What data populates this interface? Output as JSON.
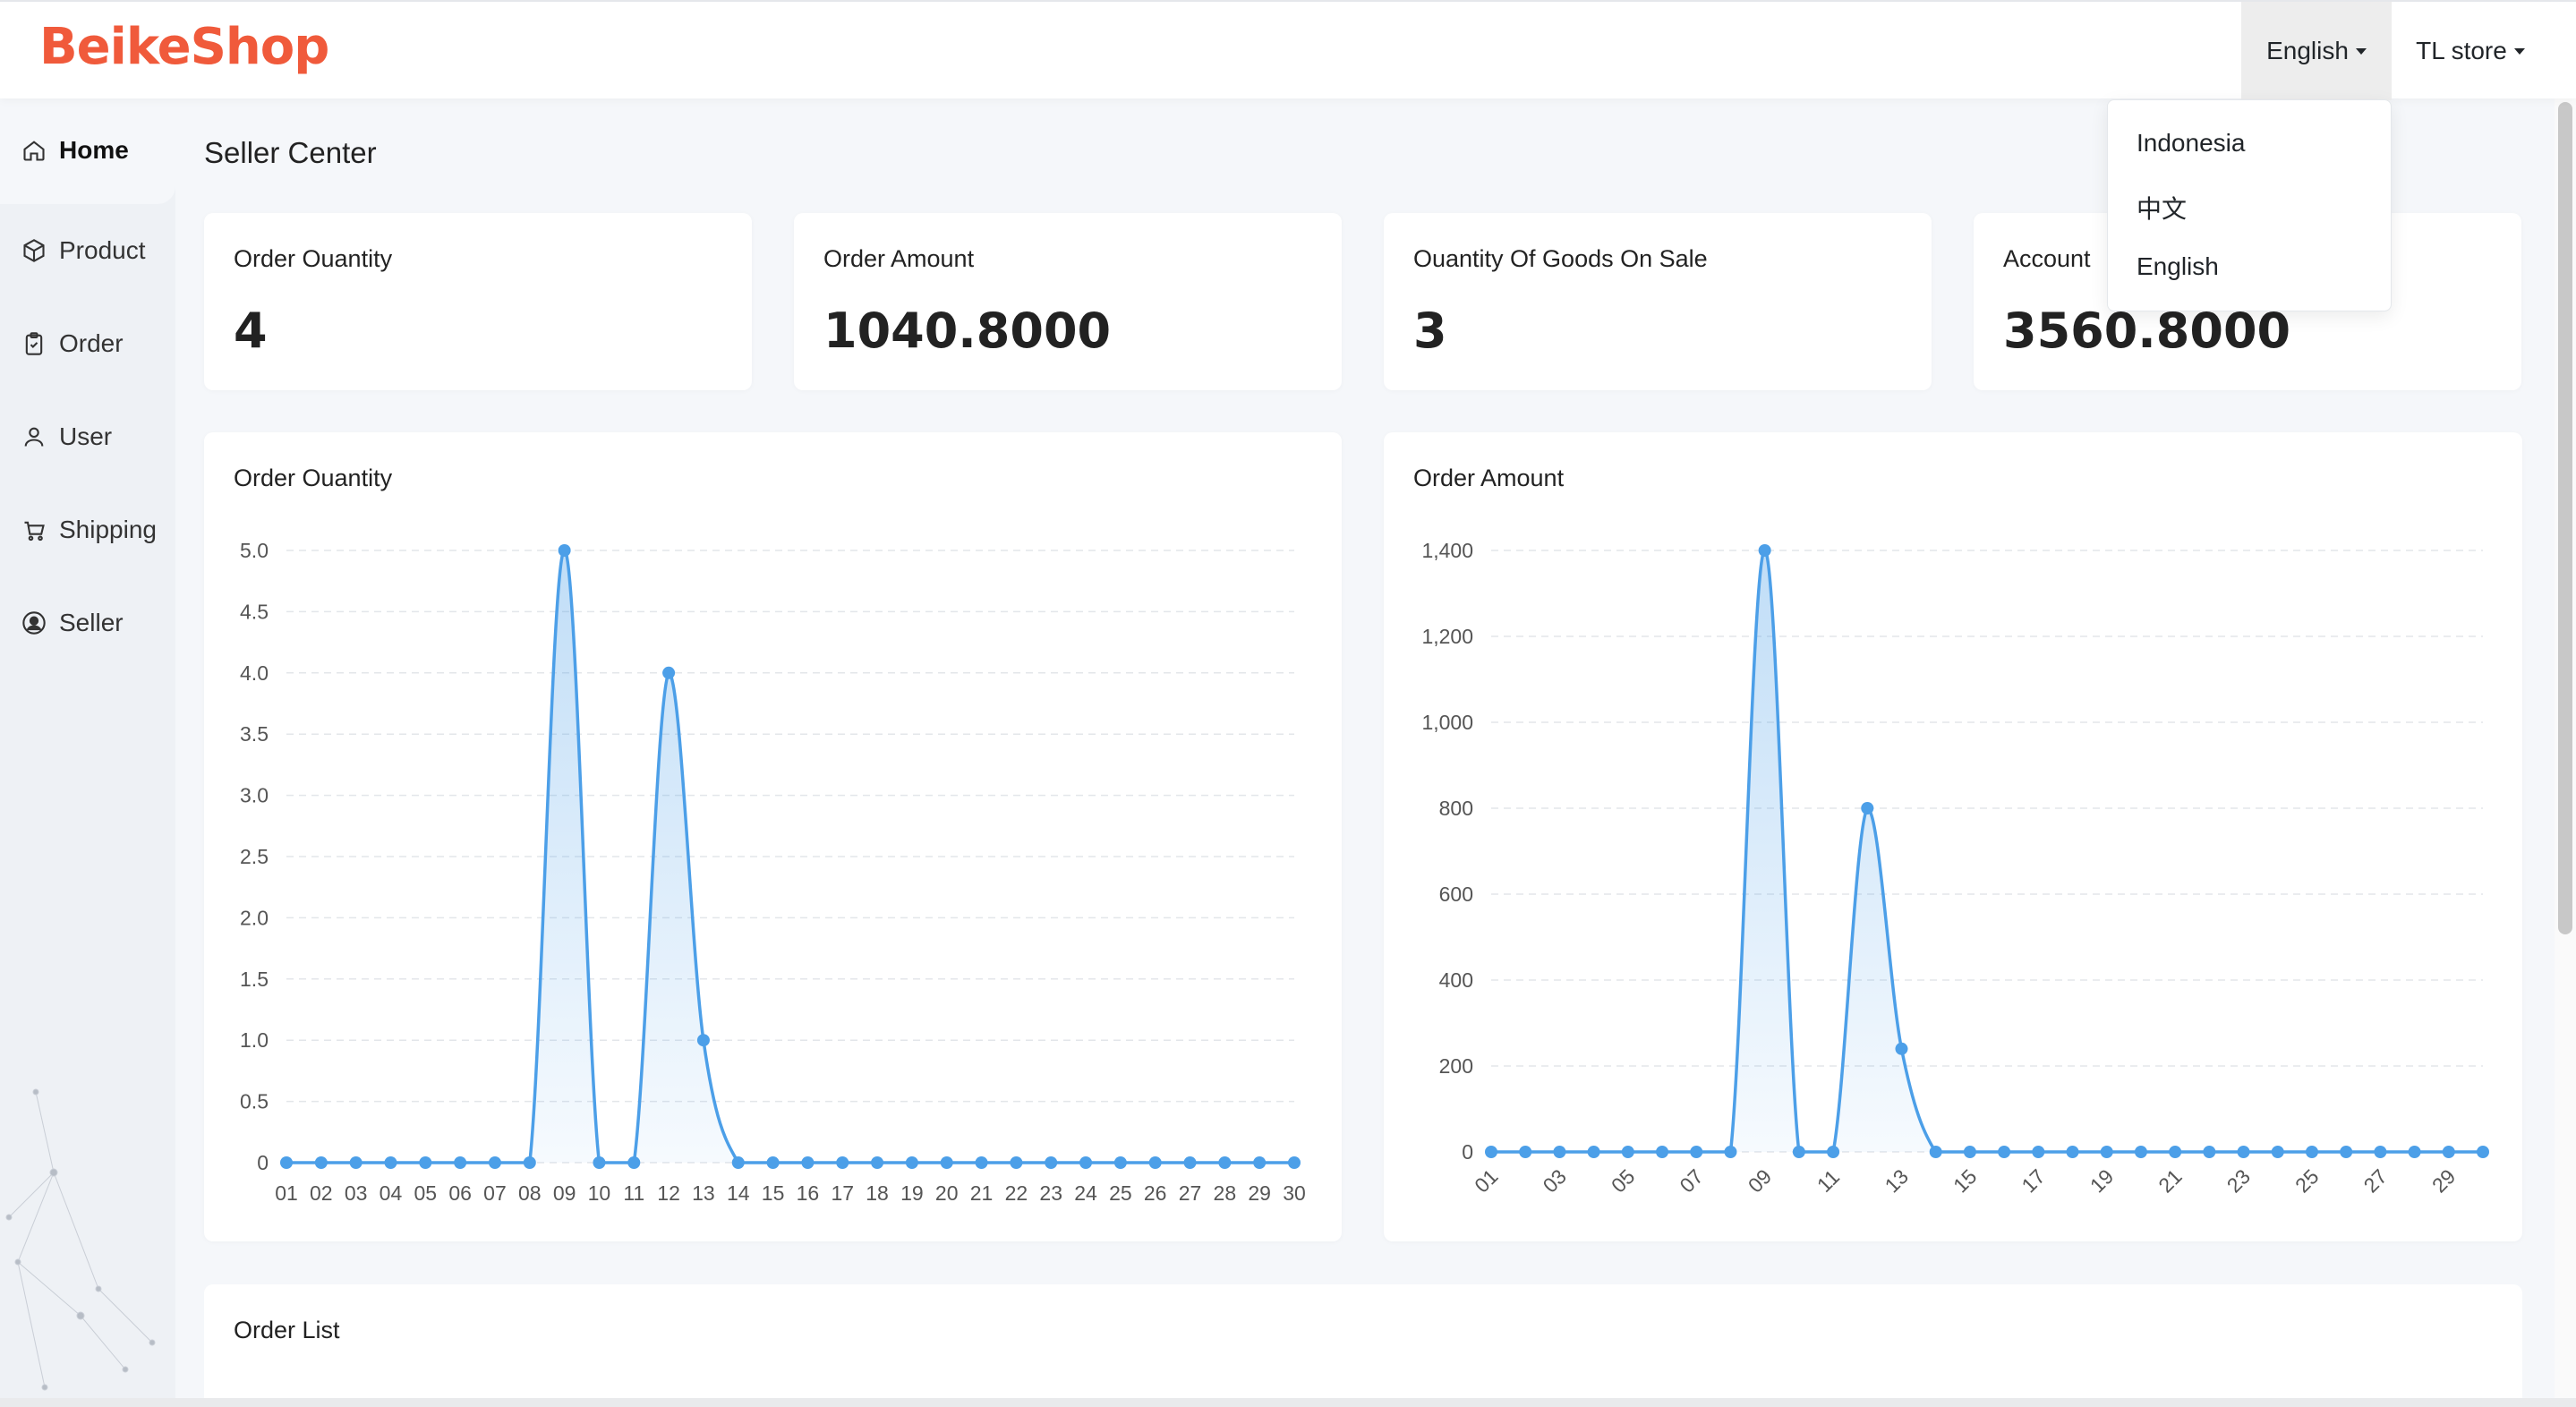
{
  "header": {
    "logo": "BeikeShop",
    "language_label": "English",
    "store_label": "TL store"
  },
  "language_menu": {
    "options": [
      "Indonesia",
      "中文",
      "English"
    ]
  },
  "sidebar": {
    "items": [
      {
        "label": "Home",
        "icon": "home-icon"
      },
      {
        "label": "Product",
        "icon": "box-icon"
      },
      {
        "label": "Order",
        "icon": "clipboard-icon"
      },
      {
        "label": "User",
        "icon": "user-icon"
      },
      {
        "label": "Shipping",
        "icon": "cart-icon"
      },
      {
        "label": "Seller",
        "icon": "user-circle-icon"
      }
    ]
  },
  "main": {
    "title": "Seller Center",
    "stats": [
      {
        "label": "Order Ouantity",
        "value": "4"
      },
      {
        "label": "Order Amount",
        "value": "1040.8000"
      },
      {
        "label": "Ouantity Of Goods On Sale",
        "value": "3"
      },
      {
        "label": "Account",
        "value": "3560.8000"
      }
    ],
    "order_list_title": "Order List"
  },
  "colors": {
    "accent": "#4c9fe8",
    "logo": "#f05a3b"
  },
  "chart_data": [
    {
      "type": "area",
      "title": "Order Ouantity",
      "x": [
        "01",
        "02",
        "03",
        "04",
        "05",
        "06",
        "07",
        "08",
        "09",
        "10",
        "11",
        "12",
        "13",
        "14",
        "15",
        "16",
        "17",
        "18",
        "19",
        "20",
        "21",
        "22",
        "23",
        "24",
        "25",
        "26",
        "27",
        "28",
        "29",
        "30"
      ],
      "values": [
        0,
        0,
        0,
        0,
        0,
        0,
        0,
        0,
        5,
        0,
        0,
        4,
        1,
        0,
        0,
        0,
        0,
        0,
        0,
        0,
        0,
        0,
        0,
        0,
        0,
        0,
        0,
        0,
        0,
        0
      ],
      "yticks": [
        "0",
        "0.5",
        "1.0",
        "1.5",
        "2.0",
        "2.5",
        "3.0",
        "3.5",
        "4.0",
        "4.5",
        "5.0"
      ],
      "ylim": [
        0,
        5
      ],
      "grid": true,
      "xlabel_step": 1
    },
    {
      "type": "area",
      "title": "Order Amount",
      "x": [
        "01",
        "02",
        "03",
        "04",
        "05",
        "06",
        "07",
        "08",
        "09",
        "10",
        "11",
        "12",
        "13",
        "14",
        "15",
        "16",
        "17",
        "18",
        "19",
        "20",
        "21",
        "22",
        "23",
        "24",
        "25",
        "26",
        "27",
        "28",
        "29",
        "30"
      ],
      "values": [
        0,
        0,
        0,
        0,
        0,
        0,
        0,
        0,
        1400,
        0,
        0,
        800,
        240,
        0,
        0,
        0,
        0,
        0,
        0,
        0,
        0,
        0,
        0,
        0,
        0,
        0,
        0,
        0,
        0,
        0
      ],
      "yticks": [
        "0",
        "200",
        "400",
        "600",
        "800",
        "1,000",
        "1,200",
        "1,400"
      ],
      "ylim": [
        0,
        1400
      ],
      "grid": true,
      "xlabel_step": 2
    }
  ]
}
